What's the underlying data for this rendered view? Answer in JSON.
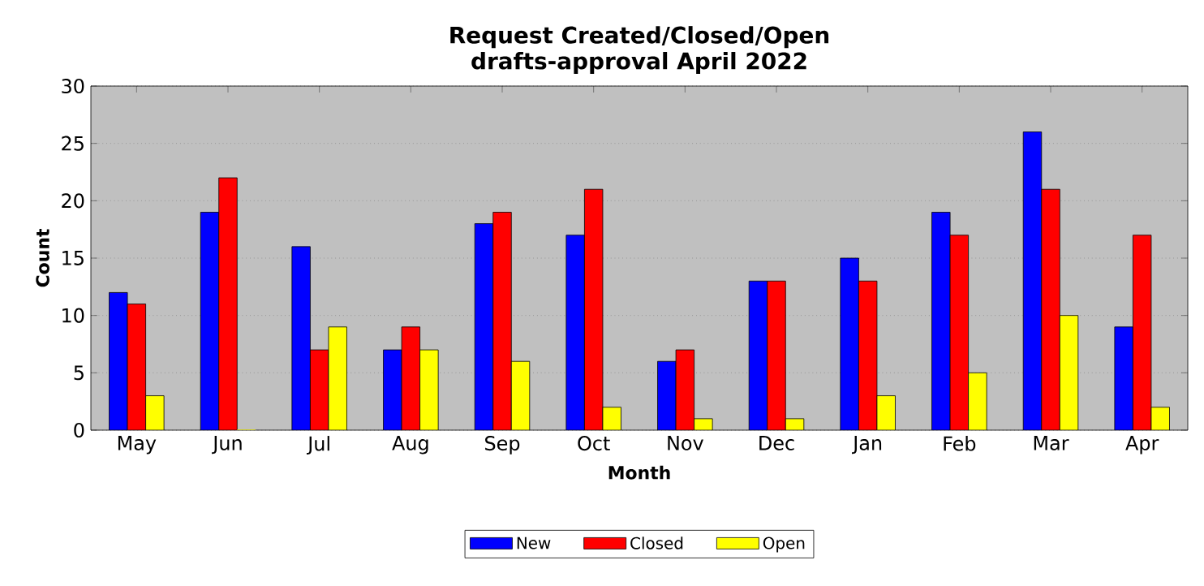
{
  "chart_data": {
    "type": "bar",
    "title": "Request Created/Closed/Open\ndrafts-approval April 2022",
    "xlabel": "Month",
    "ylabel": "Count",
    "categories": [
      "May",
      "Jun",
      "Jul",
      "Aug",
      "Sep",
      "Oct",
      "Nov",
      "Dec",
      "Jan",
      "Feb",
      "Mar",
      "Apr"
    ],
    "series": [
      {
        "name": "New",
        "color": "#0000ff",
        "values": [
          12,
          19,
          16,
          7,
          18,
          17,
          6,
          13,
          15,
          19,
          26,
          9
        ]
      },
      {
        "name": "Closed",
        "color": "#ff0000",
        "values": [
          11,
          22,
          7,
          9,
          19,
          21,
          7,
          13,
          13,
          17,
          21,
          17
        ]
      },
      {
        "name": "Open",
        "color": "#ffff00",
        "values": [
          3,
          0,
          9,
          7,
          6,
          2,
          1,
          1,
          3,
          5,
          10,
          2
        ]
      }
    ],
    "ylim": [
      0,
      30
    ],
    "yticks": [
      0,
      5,
      10,
      15,
      20,
      25,
      30
    ],
    "grid": "y",
    "legend": "bottom"
  }
}
